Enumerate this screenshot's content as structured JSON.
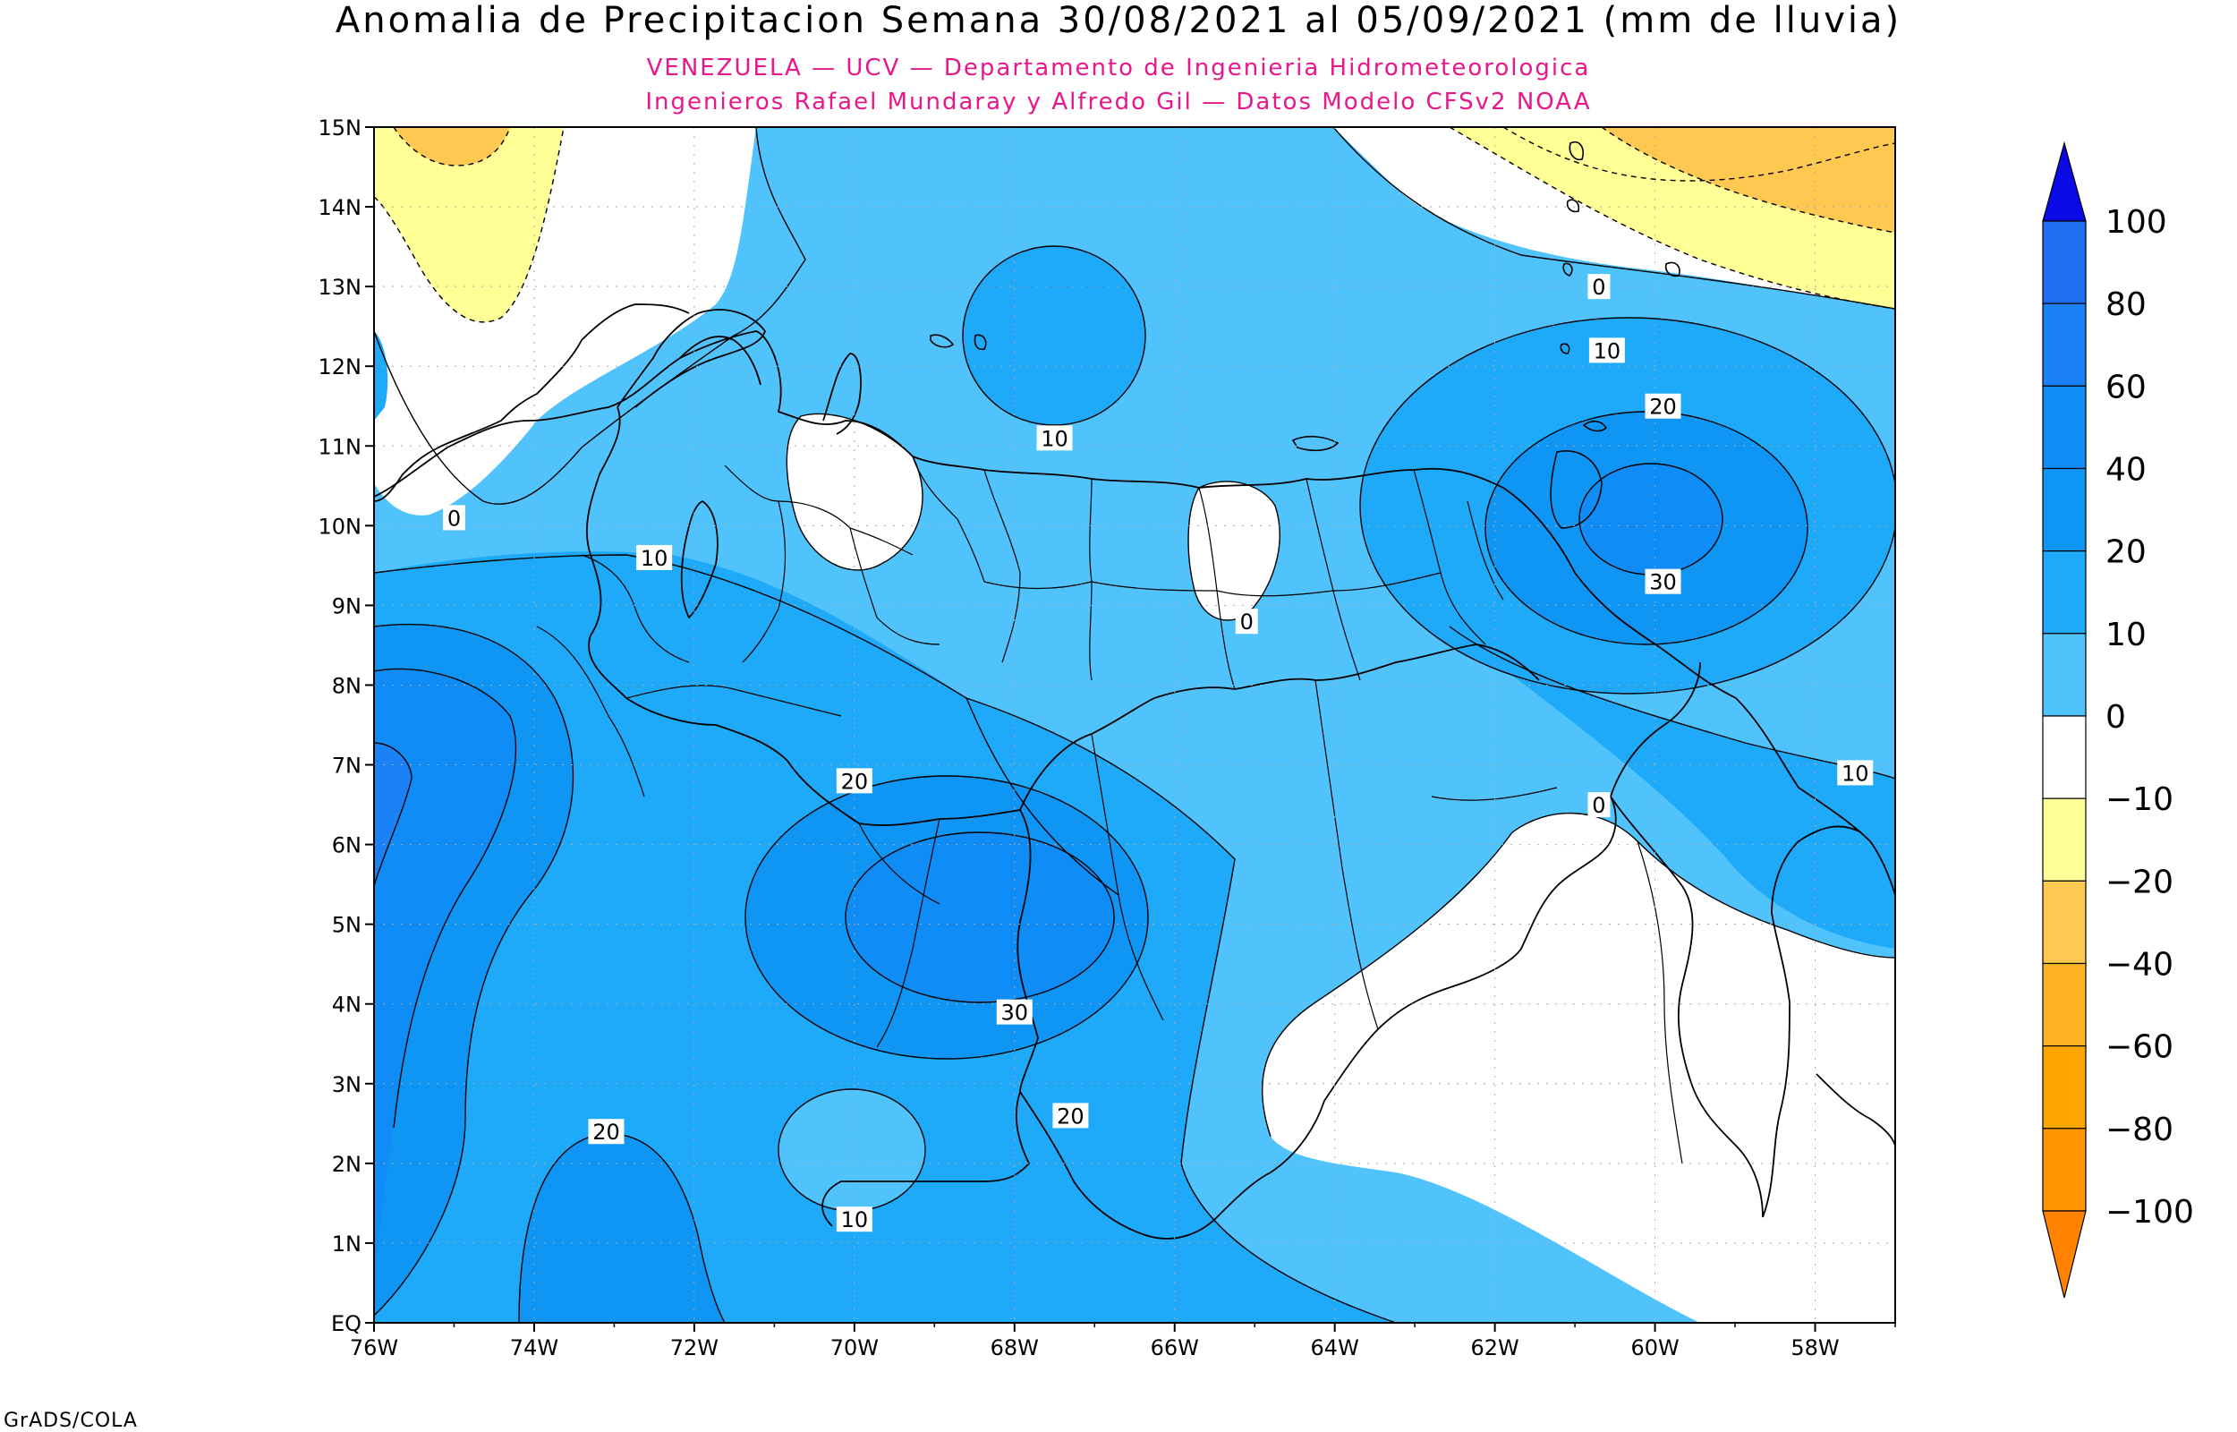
{
  "header": {
    "title": "Anomalia de Precipitacion Semana 30/08/2021 al 05/09/2021 (mm de lluvia)",
    "subtitle1": "VENEZUELA — UCV — Departamento de Ingenieria Hidrometeorologica",
    "subtitle2": "Ingenieros Rafael Mundaray y Alfredo Gil — Datos Modelo CFSv2 NOAA"
  },
  "footer": {
    "credit": "GrADS/COLA"
  },
  "map": {
    "lat_ticks": [
      "EQ",
      "1N",
      "2N",
      "3N",
      "4N",
      "5N",
      "6N",
      "7N",
      "8N",
      "9N",
      "10N",
      "11N",
      "12N",
      "13N",
      "14N",
      "15N"
    ],
    "lon_ticks": [
      "76W",
      "74W",
      "72W",
      "70W",
      "68W",
      "66W",
      "64W",
      "62W",
      "60W",
      "58W"
    ],
    "contour_labels": [
      {
        "text": "0",
        "lon": -75.0,
        "lat": 10.1
      },
      {
        "text": "10",
        "lon": -72.5,
        "lat": 9.6
      },
      {
        "text": "10",
        "lon": -67.5,
        "lat": 11.1
      },
      {
        "text": "0",
        "lon": -65.1,
        "lat": 8.8
      },
      {
        "text": "0",
        "lon": -60.7,
        "lat": 13.0
      },
      {
        "text": "10",
        "lon": -60.6,
        "lat": 12.2
      },
      {
        "text": "20",
        "lon": -59.9,
        "lat": 11.5
      },
      {
        "text": "30",
        "lon": -59.9,
        "lat": 9.3
      },
      {
        "text": "10",
        "lon": -57.5,
        "lat": 6.9
      },
      {
        "text": "0",
        "lon": -60.7,
        "lat": 6.5
      },
      {
        "text": "20",
        "lon": -70.0,
        "lat": 6.8
      },
      {
        "text": "30",
        "lon": -68.0,
        "lat": 3.9
      },
      {
        "text": "20",
        "lon": -67.3,
        "lat": 2.6
      },
      {
        "text": "20",
        "lon": -73.1,
        "lat": 2.4
      },
      {
        "text": "10",
        "lon": -70.0,
        "lat": 1.3
      }
    ]
  },
  "colorbar": {
    "labels": [
      "100",
      "80",
      "60",
      "40",
      "20",
      "10",
      "0",
      "−10",
      "−20",
      "−40",
      "−60",
      "−80",
      "−100"
    ],
    "colors": {
      "above_100": "#0a0ae6",
      "80_100": "#1e6ef0",
      "60_80": "#1a82f5",
      "40_60": "#0f8cf5",
      "20_40": "#0f96f5",
      "10_20": "#1eaaf9",
      "0_10": "#50c3fc",
      "minus10_0": "#ffffff",
      "minus20_minus10": "#ffff96",
      "minus40_minus20": "#ffc850",
      "minus60_minus40": "#ffb428",
      "minus80_minus60": "#ffa500",
      "minus100_minus80": "#ff9600",
      "below_minus100": "#ff8200"
    }
  }
}
